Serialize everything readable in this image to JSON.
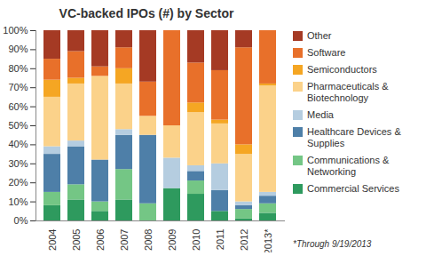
{
  "chart_data": {
    "type": "bar",
    "stacked": true,
    "title": "VC-backed IPOs (#) by Sector",
    "annotations": [
      "*Through 9/19/2013"
    ],
    "categories": [
      "2004",
      "2005",
      "2006",
      "2007",
      "2008",
      "2009",
      "2010",
      "2011",
      "2012",
      "2013*"
    ],
    "series": [
      {
        "name": "Commercial Services",
        "color": "#2e9a5e",
        "values": [
          8,
          11,
          5,
          11,
          0,
          17,
          14,
          5,
          1,
          4
        ]
      },
      {
        "name": "Communications & Networking",
        "color": "#74c685",
        "values": [
          7,
          8,
          5,
          16,
          9,
          0,
          7,
          0,
          5,
          5
        ]
      },
      {
        "name": "Healthcare Devices & Supplies",
        "color": "#4e7fa8",
        "values": [
          20,
          20,
          22,
          18,
          36,
          0,
          5,
          11,
          2,
          4
        ]
      },
      {
        "name": "Media",
        "color": "#b5cde0",
        "values": [
          4,
          3,
          0,
          3,
          0,
          16,
          3,
          14,
          2,
          2
        ]
      },
      {
        "name": "Pharmaceuticals & Biotechnology",
        "color": "#fbd28a",
        "values": [
          26,
          30,
          44,
          24,
          10,
          17,
          28,
          21,
          25,
          56
        ]
      },
      {
        "name": "Semiconductors",
        "color": "#f5a623",
        "values": [
          9,
          3,
          0,
          8,
          0,
          0,
          5,
          2,
          5,
          1
        ]
      },
      {
        "name": "Software",
        "color": "#e8702a",
        "values": [
          11,
          14,
          5,
          11,
          18,
          50,
          21,
          26,
          51,
          28
        ]
      },
      {
        "name": "Other",
        "color": "#a53a24",
        "values": [
          15,
          11,
          19,
          9,
          27,
          0,
          17,
          21,
          9,
          0
        ]
      }
    ],
    "ylim": [
      0,
      100
    ],
    "yticks": [
      {
        "value": 0,
        "label": "0%"
      },
      {
        "value": 10,
        "label": "10%"
      },
      {
        "value": 20,
        "label": "20%"
      },
      {
        "value": 30,
        "label": "30%"
      },
      {
        "value": 40,
        "label": "40%"
      },
      {
        "value": 50,
        "label": "50%"
      },
      {
        "value": 60,
        "label": "60%"
      },
      {
        "value": 70,
        "label": "70%"
      },
      {
        "value": 80,
        "label": "80%"
      },
      {
        "value": 90,
        "label": "90%"
      },
      {
        "value": 100,
        "label": "100%"
      }
    ],
    "grid": false,
    "legend": "right"
  }
}
